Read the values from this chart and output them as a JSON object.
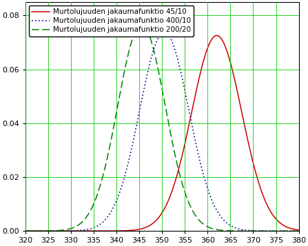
{
  "title": "",
  "xlabel": "",
  "ylabel": "",
  "xlim": [
    320,
    380
  ],
  "ylim": [
    0,
    0.085
  ],
  "xticks": [
    320,
    325,
    330,
    335,
    340,
    345,
    350,
    355,
    360,
    365,
    370,
    375,
    380
  ],
  "yticks": [
    0,
    0.02,
    0.04,
    0.06,
    0.08
  ],
  "curves": [
    {
      "label": "Murtolujuuden jakaumafunktio 45/10",
      "color": "#cc0000",
      "linestyle": "solid",
      "linewidth": 1.1,
      "mu": 362.0,
      "sigma": 5.5
    },
    {
      "label": "Murtolujuuden jakaumafunktio 400/10",
      "color": "#00008b",
      "linestyle": "dotted",
      "linewidth": 1.2,
      "mu": 350.5,
      "sigma": 5.4
    },
    {
      "label": "Murtolujuuden jakaumafunktio 200/20",
      "color": "#008000",
      "linestyle": "dashed",
      "linewidth": 1.1,
      "mu": 345.5,
      "sigma": 5.2
    }
  ],
  "grid_color": "#00cc00",
  "grid_alpha": 0.85,
  "grid_linewidth": 0.7,
  "background_color": "#ffffff",
  "legend_fontsize": 7.5,
  "tick_fontsize": 8.0
}
